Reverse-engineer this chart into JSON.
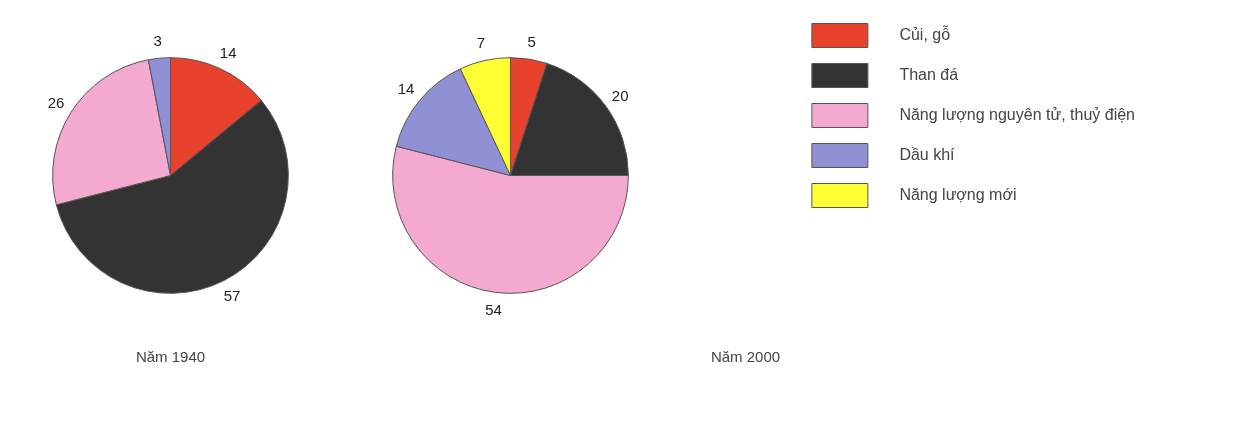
{
  "chart_data": [
    {
      "type": "pie",
      "title": "Năm 1940",
      "categories": [
        null,
        null,
        null,
        null
      ],
      "values": [
        14,
        57,
        26,
        3
      ],
      "colors": [
        "#e8412c",
        "#333333",
        "#f4a9d0",
        "#9090d4"
      ],
      "data_labels": true,
      "legend": false
    },
    {
      "type": "pie",
      "title": "Năm 2000",
      "categories": [
        "Củi, gỗ",
        "Than đá",
        "Năng lượng nguyên tử, thuỷ điện",
        "Dầu khí",
        "Năng lượng mới"
      ],
      "values": [
        5,
        20,
        54,
        14,
        7
      ],
      "colors": [
        "#e8412c",
        "#333333",
        "#f4a9d0",
        "#9090d4",
        "#ffff33"
      ],
      "data_labels": true,
      "legend": "right"
    }
  ]
}
